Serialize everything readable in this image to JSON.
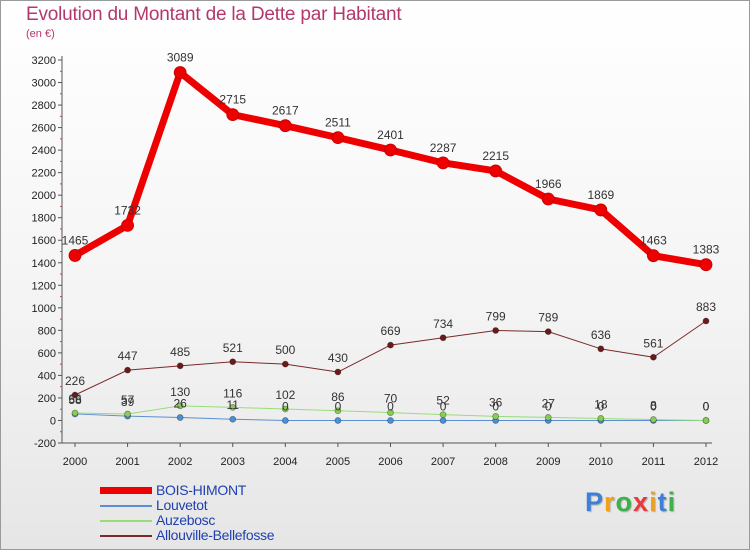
{
  "chart_data": {
    "type": "line",
    "title": "Evolution du Montant de la Dette par Habitant",
    "subtitle": "(en €)",
    "x": [
      "2000",
      "2001",
      "2002",
      "2003",
      "2004",
      "2005",
      "2006",
      "2007",
      "2008",
      "2009",
      "2010",
      "2011",
      "2012"
    ],
    "ylim": [
      -200,
      3200
    ],
    "yticks": [
      -200,
      0,
      200,
      400,
      600,
      800,
      1000,
      1200,
      1400,
      1600,
      1800,
      2000,
      2200,
      2400,
      2600,
      2800,
      3000,
      3200
    ],
    "grid": false,
    "legend_position": "bottom-left",
    "series": [
      {
        "name": "BOIS-HIMONT",
        "color": "#ee0000",
        "width": 7,
        "marker_color": "#ee0000",
        "marker_r": 6,
        "values": [
          1465,
          1732,
          3089,
          2715,
          2617,
          2511,
          2401,
          2287,
          2215,
          1966,
          1869,
          1463,
          1383
        ],
        "labels": [
          "1465",
          "1732",
          "3089",
          "2715",
          "2617",
          "2511",
          "2401",
          "2287",
          "2215",
          "1966",
          "1869",
          "1463",
          "1383"
        ]
      },
      {
        "name": "Louvetot",
        "color": "#5b8fd0",
        "width": 1,
        "marker_color": "#4a90d9",
        "marker_r": 3,
        "values": [
          58,
          39,
          26,
          11,
          0,
          0,
          0,
          0,
          0,
          0,
          0,
          0,
          0
        ],
        "labels": [
          "58",
          "39",
          "26",
          "11",
          "0",
          "0",
          "0",
          "0",
          "0",
          "0",
          "0",
          "0",
          "0"
        ]
      },
      {
        "name": "Auzebosc",
        "color": "#99dd77",
        "width": 1,
        "marker_color": "#88cc55",
        "marker_r": 3,
        "values": [
          66,
          57,
          130,
          116,
          102,
          86,
          70,
          52,
          36,
          27,
          18,
          8,
          0
        ],
        "labels": [
          "66",
          "57",
          "130",
          "116",
          "102",
          "86",
          "70",
          "52",
          "36",
          "27",
          "18",
          "8",
          "0"
        ]
      },
      {
        "name": "Allouville-Bellefosse",
        "color": "#7a2a2a",
        "width": 1,
        "marker_color": "#6b1a1a",
        "marker_r": 3,
        "values": [
          226,
          447,
          485,
          521,
          500,
          430,
          669,
          734,
          799,
          789,
          636,
          561,
          883
        ],
        "labels": [
          "226",
          "447",
          "485",
          "521",
          "500",
          "430",
          "669",
          "734",
          "799",
          "789",
          "636",
          "561",
          "883"
        ]
      }
    ]
  },
  "brand": {
    "letters": [
      "P",
      "r",
      "o",
      "x",
      "i",
      "t",
      "i"
    ],
    "colors": [
      "#3d7fd9",
      "#f2a019",
      "#3cb04a",
      "#e83a3a",
      "#f2a019",
      "#3d7fd9",
      "#3cb04a"
    ]
  }
}
